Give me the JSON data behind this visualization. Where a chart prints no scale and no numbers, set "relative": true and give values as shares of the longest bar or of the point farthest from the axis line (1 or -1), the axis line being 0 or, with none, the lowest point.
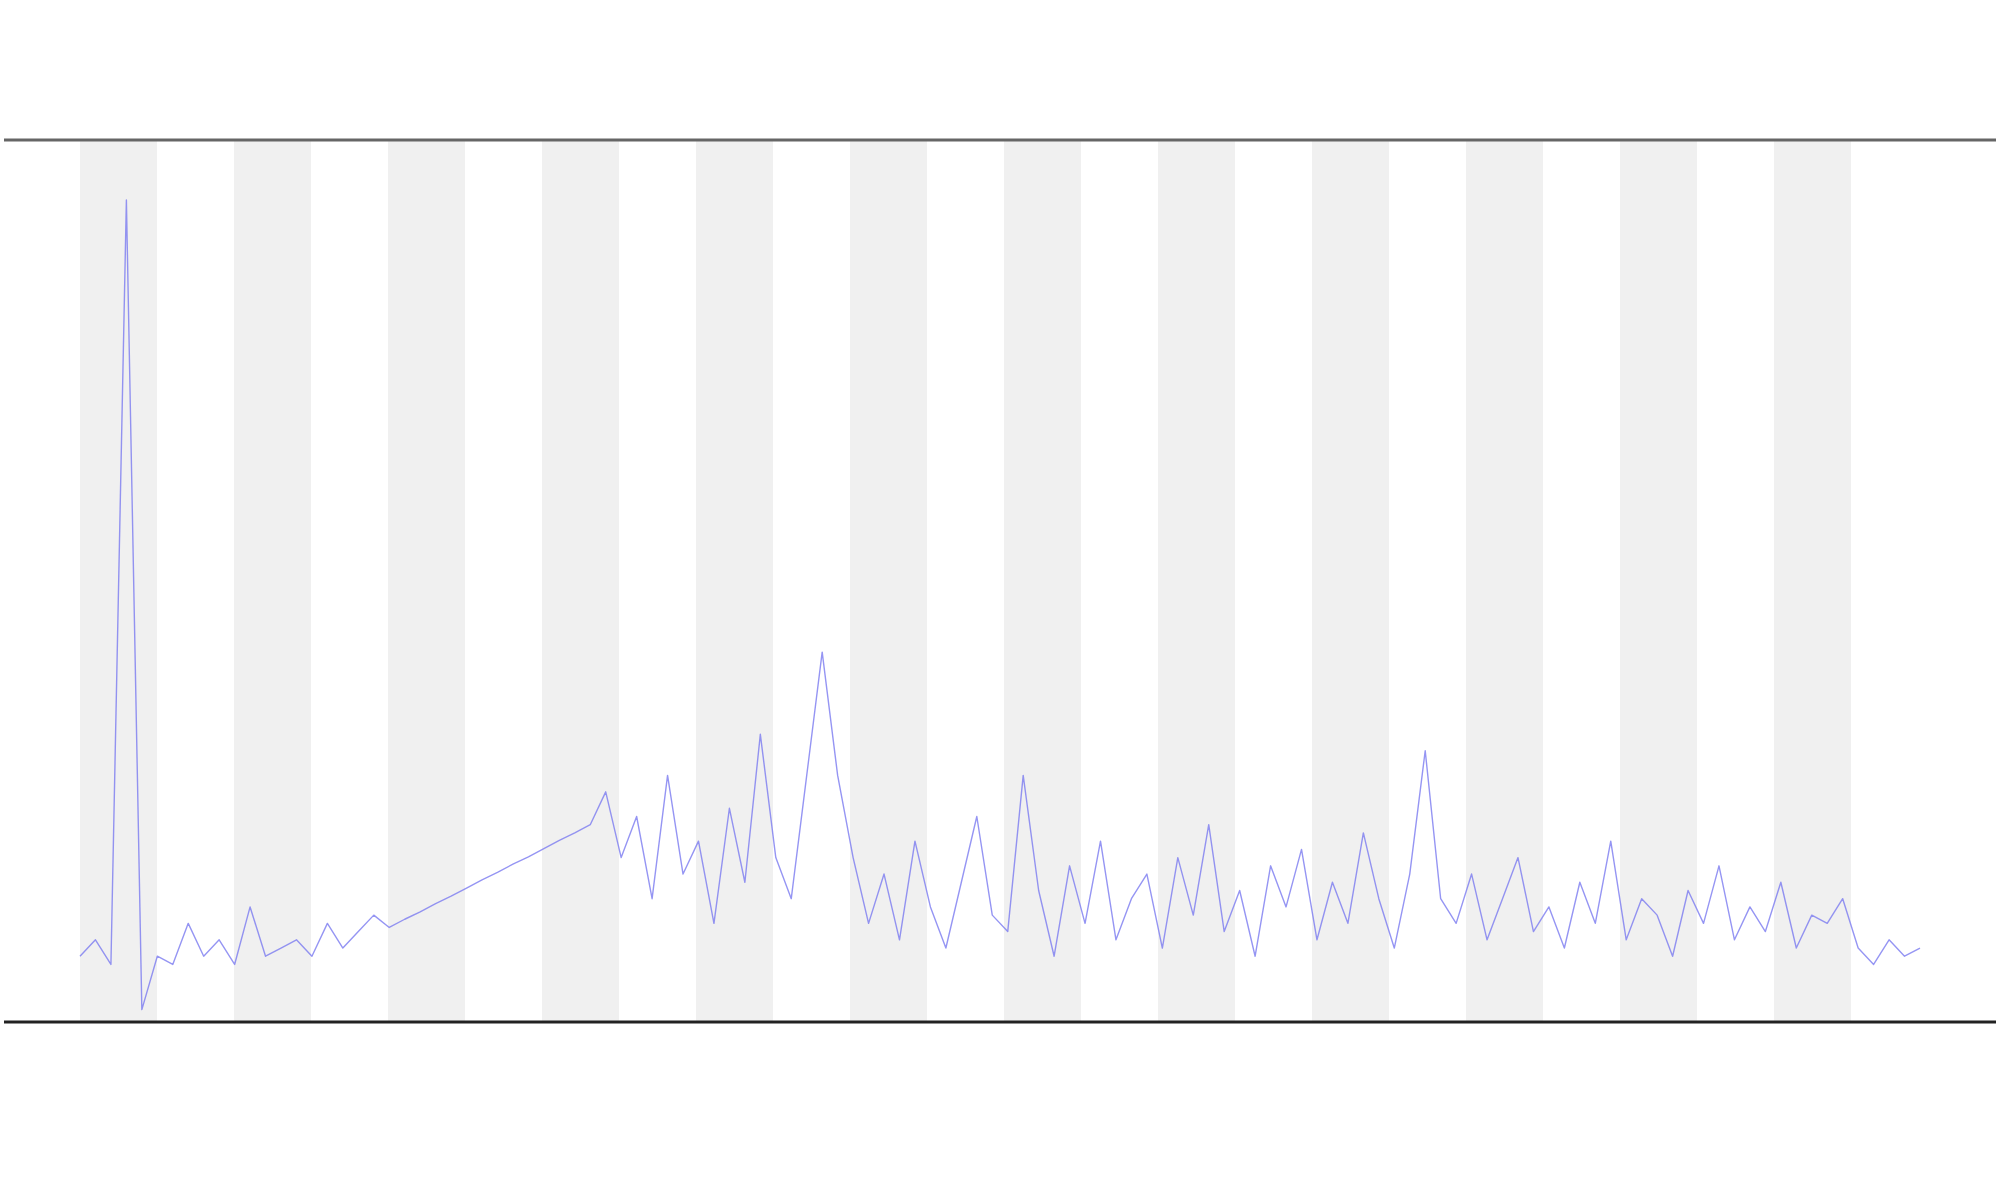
{
  "chart_data": {
    "type": "line",
    "relative": true,
    "categories": [
      null,
      null,
      null,
      null,
      null,
      null,
      null,
      null,
      null,
      null,
      null,
      null,
      null,
      null,
      null,
      null,
      null,
      null,
      null,
      null,
      null,
      null,
      null,
      null,
      null,
      null,
      null,
      null,
      null,
      null,
      null,
      null,
      null,
      null,
      null,
      null,
      null,
      null,
      null,
      null,
      null,
      null,
      null,
      null,
      null,
      null,
      null,
      null,
      null,
      null,
      null,
      null,
      null,
      null,
      null,
      null,
      null,
      null,
      null,
      null,
      null,
      null,
      null,
      null,
      null,
      null,
      null,
      null,
      null,
      null,
      null,
      null,
      null,
      null,
      null,
      null,
      null,
      null,
      null,
      null,
      null,
      null,
      null,
      null,
      null,
      null,
      null,
      null,
      null,
      null,
      null,
      null,
      null,
      null,
      null,
      null,
      null,
      null,
      null,
      null,
      null,
      null,
      null,
      null,
      null,
      null,
      null,
      null,
      null,
      null,
      null,
      null,
      null,
      null,
      null,
      null,
      null,
      null,
      null,
      null
    ],
    "series": [
      {
        "color": "#7b7bf0",
        "values": [
          0.08,
          0.1,
          0.07,
          1.0,
          0.015,
          0.08,
          0.07,
          0.12,
          0.08,
          0.1,
          0.07,
          0.14,
          0.08,
          0.09,
          0.1,
          0.08,
          0.12,
          0.09,
          0.11,
          0.13,
          0.115,
          0.125,
          0.134,
          0.144,
          0.153,
          0.163,
          0.173,
          0.182,
          0.192,
          0.201,
          0.211,
          0.221,
          0.23,
          0.24,
          0.28,
          0.2,
          0.25,
          0.15,
          0.3,
          0.18,
          0.22,
          0.12,
          0.26,
          0.17,
          0.35,
          0.2,
          0.15,
          0.3,
          0.45,
          0.3,
          0.2,
          0.12,
          0.18,
          0.1,
          0.22,
          0.14,
          0.09,
          0.17,
          0.25,
          0.13,
          0.11,
          0.3,
          0.16,
          0.08,
          0.19,
          0.12,
          0.22,
          0.1,
          0.15,
          0.18,
          0.09,
          0.2,
          0.13,
          0.24,
          0.11,
          0.16,
          0.08,
          0.19,
          0.14,
          0.21,
          0.1,
          0.17,
          0.12,
          0.23,
          0.15,
          0.09,
          0.18,
          0.33,
          0.15,
          0.12,
          0.18,
          0.1,
          0.15,
          0.2,
          0.11,
          0.14,
          0.09,
          0.17,
          0.12,
          0.22,
          0.1,
          0.15,
          0.13,
          0.08,
          0.16,
          0.12,
          0.19,
          0.1,
          0.14,
          0.11,
          0.17,
          0.09,
          0.13,
          0.12,
          0.15,
          0.09,
          0.07,
          0.1,
          0.08,
          0.09
        ]
      }
    ]
  }
}
